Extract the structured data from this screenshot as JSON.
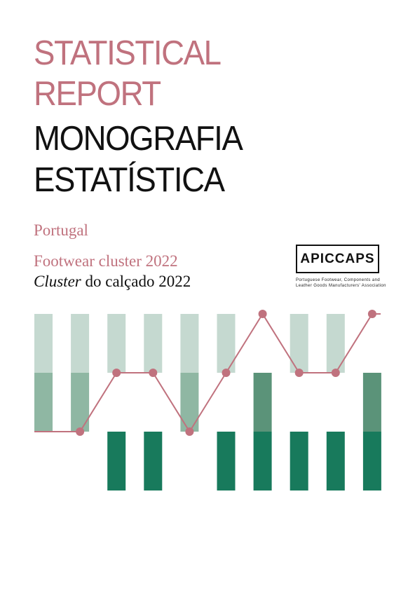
{
  "colors": {
    "accent": "#c0727e",
    "light_green": "#c5d9d0",
    "mid_green": "#8fb7a3",
    "sage_green": "#5b9379",
    "dark_green": "#187a5c",
    "line": "#c0727e"
  },
  "cover": {
    "title_en_line1": "STATISTICAL",
    "title_en_line2": "REPORT",
    "title_pt_line1": "MONOGRAFIA",
    "title_pt_line2": "ESTATÍSTICA",
    "country": "Portugal",
    "subtitle_en": "Footwear cluster 2022",
    "subtitle_pt_italic": "Cluster",
    "subtitle_pt_rest": " do calçado 2022"
  },
  "logo": {
    "name": "APICCAPS",
    "caption_line1": "Portuguese Footwear, Components and",
    "caption_line2": "Leather Goods Manufacturers' Association"
  },
  "graphic": {
    "columns": [
      {
        "top": "light",
        "mid": "mid",
        "bottom": "none"
      },
      {
        "top": "light",
        "mid": "mid",
        "bottom": "none"
      },
      {
        "top": "light",
        "mid": "none",
        "bottom": "dark"
      },
      {
        "top": "light",
        "mid": "none",
        "bottom": "dark"
      },
      {
        "top": "light",
        "mid": "mid",
        "bottom": "none"
      },
      {
        "top": "light",
        "mid": "none",
        "bottom": "dark"
      },
      {
        "top": "none",
        "mid": "none",
        "bottom": "sage_dark"
      },
      {
        "top": "light",
        "mid": "none",
        "bottom": "dark"
      },
      {
        "top": "light",
        "mid": "none",
        "bottom": "dark"
      },
      {
        "top": "none",
        "mid": "none",
        "bottom": "sage_dark"
      }
    ],
    "line_levels": [
      0,
      0,
      1,
      1,
      0,
      1,
      2,
      1,
      1,
      2
    ]
  }
}
